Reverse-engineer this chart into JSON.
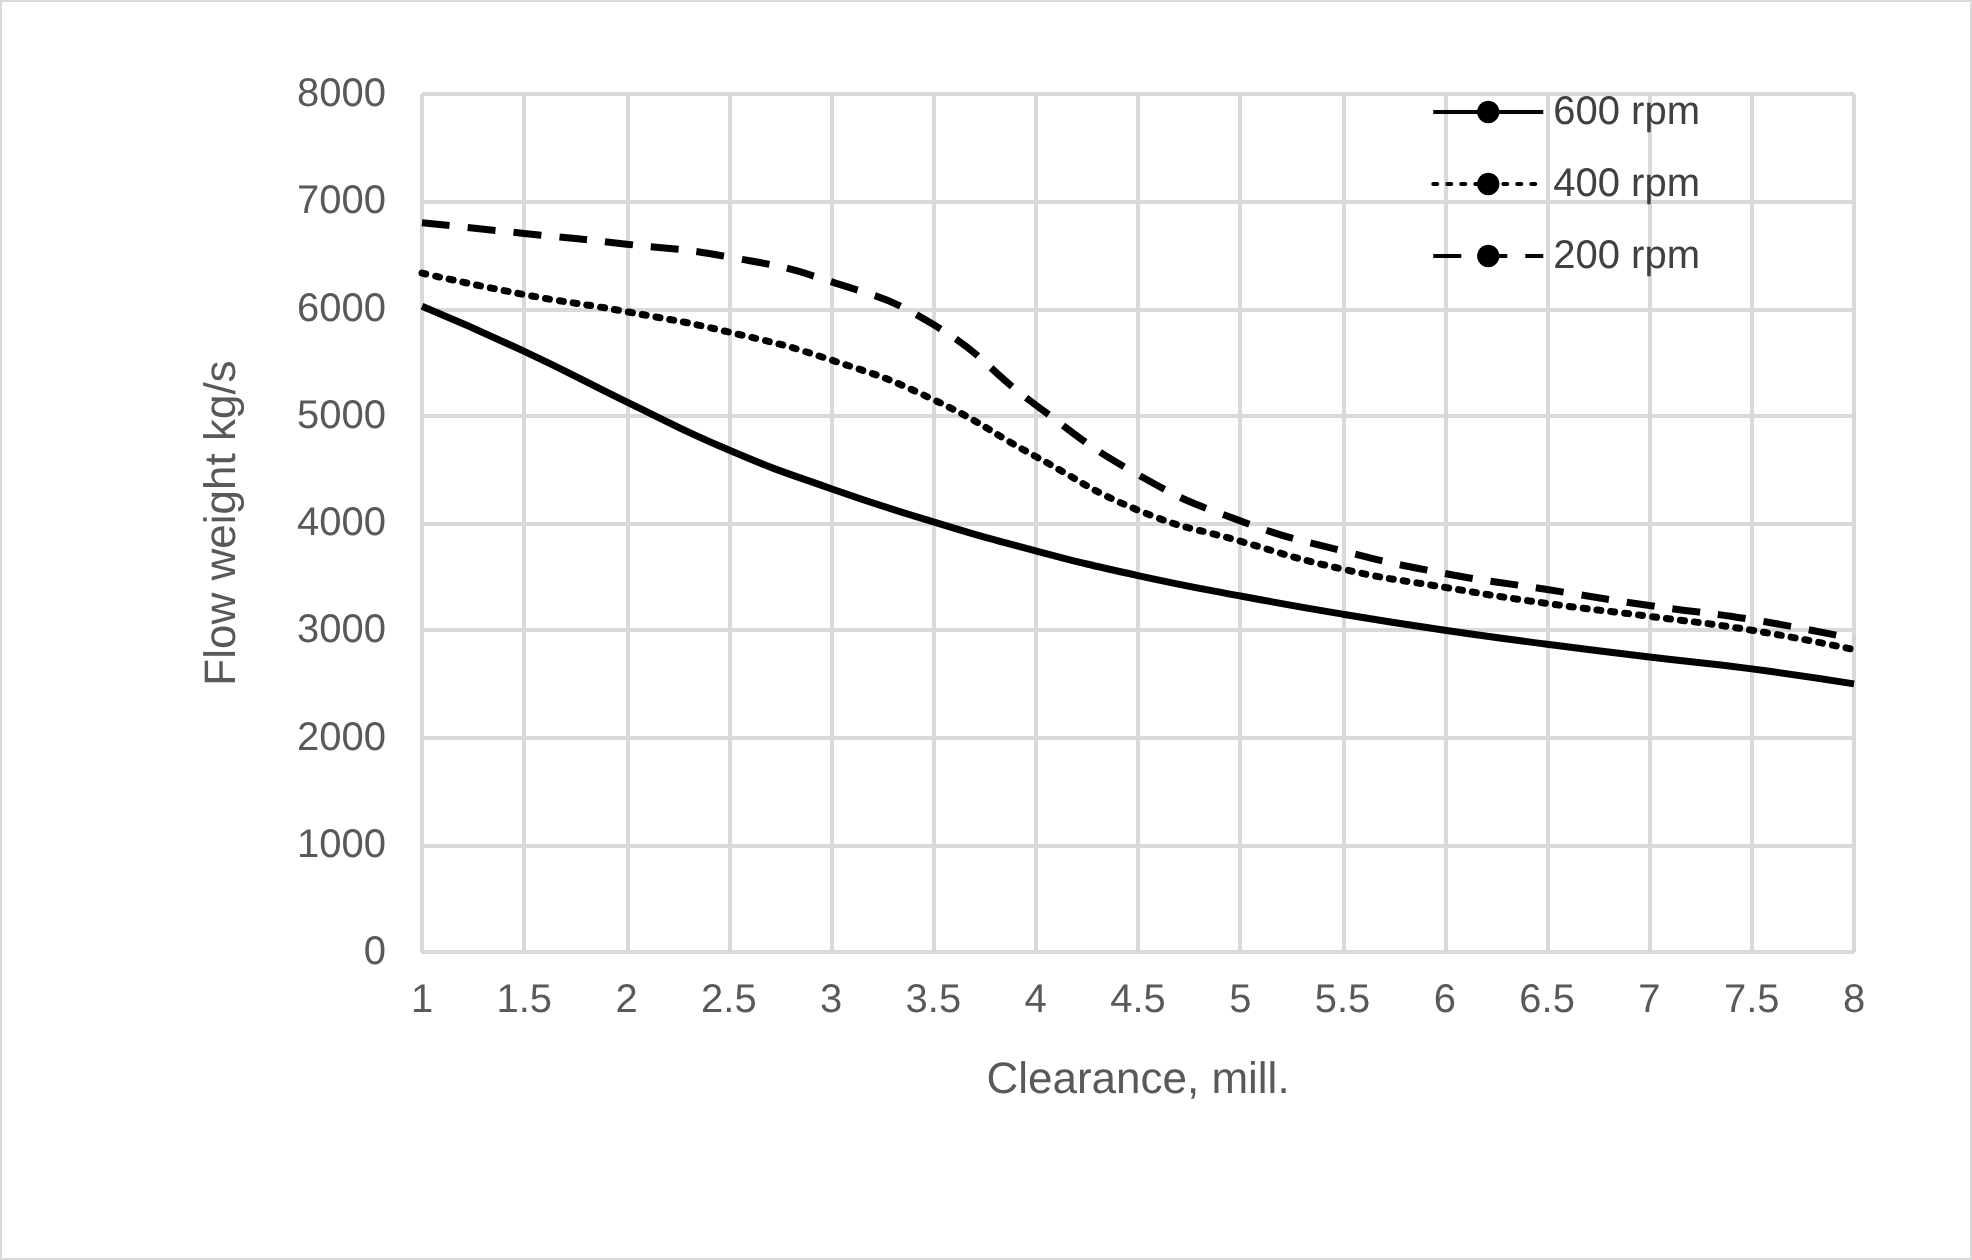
{
  "chart_data": {
    "type": "line",
    "xlabel": "Clearance, mill.",
    "ylabel": "Flow weight kg/s",
    "x": [
      1,
      1.5,
      2,
      2.5,
      3,
      3.5,
      4,
      4.5,
      5,
      5.5,
      6,
      6.5,
      7,
      7.5,
      8
    ],
    "series": [
      {
        "name": "600 rpm",
        "color": "#000000",
        "line_style": "solid",
        "values": [
          6020,
          5600,
          5130,
          4680,
          4320,
          4010,
          3740,
          3510,
          3320,
          3150,
          3000,
          2870,
          2750,
          2640,
          2500
        ]
      },
      {
        "name": "400 rpm",
        "color": "#000000",
        "line_style": "dotted",
        "values": [
          6330,
          6130,
          5970,
          5780,
          5520,
          5150,
          4620,
          4120,
          3830,
          3570,
          3400,
          3250,
          3130,
          3000,
          2820
        ]
      },
      {
        "name": "200 rpm",
        "color": "#000000",
        "line_style": "dashed",
        "values": [
          6800,
          6700,
          6600,
          6480,
          6250,
          5850,
          5100,
          4450,
          4020,
          3740,
          3530,
          3380,
          3230,
          3100,
          2920
        ]
      }
    ],
    "xlim": [
      1,
      8
    ],
    "xticks": [
      1,
      1.5,
      2,
      2.5,
      3,
      3.5,
      4,
      4.5,
      5,
      5.5,
      6,
      6.5,
      7,
      7.5,
      8
    ],
    "ylim": [
      0,
      8000
    ],
    "yticks": [
      0,
      1000,
      2000,
      3000,
      4000,
      5000,
      6000,
      7000,
      8000
    ],
    "grid": true,
    "legend": "top right",
    "marker": "none"
  }
}
